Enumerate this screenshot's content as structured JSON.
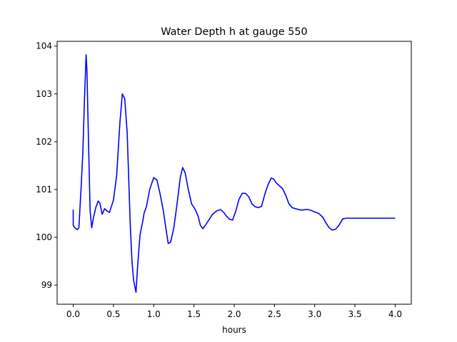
{
  "chart_data": {
    "type": "line",
    "title": "Water Depth h at gauge 550",
    "xlabel": "hours",
    "ylabel": "",
    "xlim": [
      -0.2,
      4.2
    ],
    "ylim": [
      98.6,
      104.1
    ],
    "xticks": [
      0.0,
      0.5,
      1.0,
      1.5,
      2.0,
      2.5,
      3.0,
      3.5,
      4.0
    ],
    "xtick_labels": [
      "0.0",
      "0.5",
      "1.0",
      "1.5",
      "2.0",
      "2.5",
      "3.0",
      "3.5",
      "4.0"
    ],
    "yticks": [
      99,
      100,
      101,
      102,
      103,
      104
    ],
    "ytick_labels": [
      "99",
      "100",
      "101",
      "102",
      "103",
      "104"
    ],
    "grid": false,
    "series": [
      {
        "color": "#0000ff",
        "x": [
          0.0,
          0.0,
          0.02,
          0.05,
          0.07,
          0.1,
          0.12,
          0.14,
          0.16,
          0.17,
          0.19,
          0.21,
          0.23,
          0.25,
          0.28,
          0.31,
          0.33,
          0.36,
          0.39,
          0.42,
          0.45,
          0.5,
          0.54,
          0.58,
          0.61,
          0.64,
          0.67,
          0.69,
          0.71,
          0.73,
          0.75,
          0.78,
          0.8,
          0.83,
          0.86,
          0.88,
          0.91,
          0.95,
          1.0,
          1.04,
          1.08,
          1.12,
          1.15,
          1.18,
          1.21,
          1.25,
          1.29,
          1.33,
          1.36,
          1.39,
          1.43,
          1.47,
          1.51,
          1.55,
          1.58,
          1.61,
          1.64,
          1.68,
          1.73,
          1.78,
          1.83,
          1.87,
          1.9,
          1.94,
          1.98,
          2.02,
          2.06,
          2.1,
          2.14,
          2.18,
          2.22,
          2.26,
          2.3,
          2.34,
          2.38,
          2.42,
          2.46,
          2.49,
          2.52,
          2.56,
          2.6,
          2.64,
          2.68,
          2.72,
          2.76,
          2.8,
          2.84,
          2.88,
          2.92,
          2.96,
          3.0,
          3.05,
          3.1,
          3.14,
          3.18,
          3.22,
          3.26,
          3.3,
          3.35,
          3.4,
          3.46,
          3.5,
          3.55,
          3.6,
          3.65,
          3.7,
          3.74,
          3.78,
          3.82,
          3.86,
          3.9,
          3.94,
          3.98,
          4.0
        ],
        "y": [
          100.58,
          100.25,
          100.2,
          100.16,
          100.2,
          101.1,
          101.8,
          102.9,
          103.82,
          103.5,
          102.0,
          100.55,
          100.2,
          100.4,
          100.62,
          100.76,
          100.72,
          100.48,
          100.6,
          100.55,
          100.52,
          100.78,
          101.3,
          102.4,
          103.0,
          102.9,
          102.2,
          101.2,
          100.2,
          99.5,
          99.1,
          98.85,
          99.4,
          100.05,
          100.3,
          100.5,
          100.65,
          101.0,
          101.25,
          101.2,
          100.9,
          100.55,
          100.2,
          99.87,
          99.9,
          100.2,
          100.7,
          101.25,
          101.46,
          101.35,
          101.0,
          100.7,
          100.6,
          100.45,
          100.25,
          100.18,
          100.25,
          100.35,
          100.48,
          100.55,
          100.58,
          100.52,
          100.45,
          100.38,
          100.36,
          100.55,
          100.8,
          100.92,
          100.92,
          100.85,
          100.7,
          100.64,
          100.62,
          100.65,
          100.9,
          101.1,
          101.24,
          101.22,
          101.14,
          101.08,
          101.02,
          100.88,
          100.7,
          100.62,
          100.6,
          100.58,
          100.57,
          100.58,
          100.58,
          100.56,
          100.53,
          100.5,
          100.42,
          100.3,
          100.2,
          100.15,
          100.17,
          100.25,
          100.39,
          100.4,
          100.4,
          100.4,
          100.4,
          100.4,
          100.4,
          100.4,
          100.4,
          100.4,
          100.4,
          100.4,
          100.4,
          100.4,
          100.4,
          100.4
        ]
      }
    ]
  }
}
